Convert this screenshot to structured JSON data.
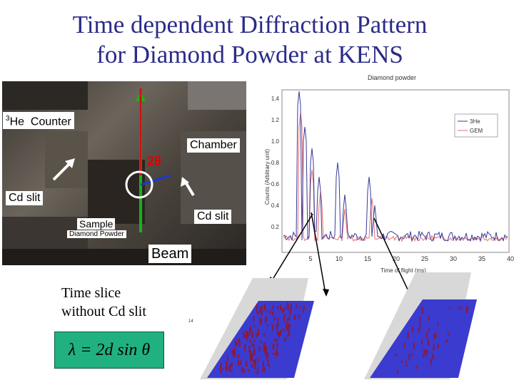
{
  "title": {
    "line1": "Time dependent Diffraction Pattern",
    "line2": "for Diamond Powder at KENS"
  },
  "photo": {
    "counter_label": "Counter",
    "counter_sup": "3",
    "counter_prefix": "He",
    "chamber_label": "Chamber",
    "two_theta": "2θ",
    "cd_slit_left": "Cd slit",
    "cd_slit_right": "Cd slit",
    "sample_label": "Sample",
    "sample_sub": "Diamond Powder",
    "beam_label": "Beam"
  },
  "chart": {
    "title": "Diamond powder",
    "ylabel": "Counts (Arbitrary unit)",
    "xlabel": "Time of flight (ms)",
    "y_ticks": [
      "1.4",
      "1.2",
      "1.0",
      "0.8",
      "0.6",
      "0.4",
      "0.2"
    ],
    "x_ticks": [
      "5",
      "10",
      "15",
      "20",
      "25",
      "30",
      "35",
      "40"
    ],
    "legend": [
      "3He",
      "GEM"
    ],
    "colors": {
      "3He": "#3a3a9a",
      "GEM": "#e87070"
    }
  },
  "slice": {
    "line1": "Time slice",
    "line2": "without Cd slit"
  },
  "formula": "λ = 2d sin θ",
  "colors": {
    "title": "#2b2b8a",
    "formula_bg": "#21b080",
    "plot_blue": "#3b3bd0",
    "plot_red": "#8a1a3a"
  }
}
